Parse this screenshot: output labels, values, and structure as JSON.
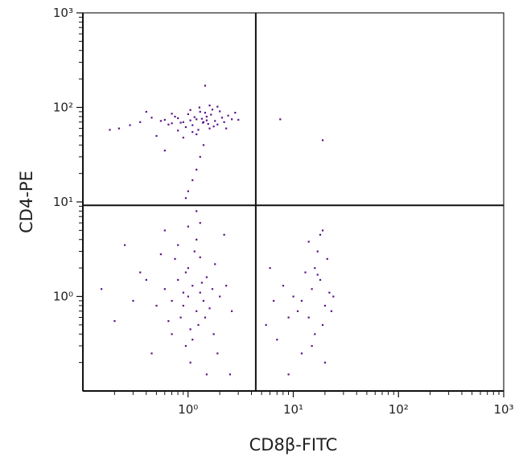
{
  "chart_data": {
    "type": "scatter",
    "x_label": "CD8β-FITC",
    "y_label": "CD4-PE",
    "log_x": true,
    "log_y": true,
    "color": "#5a1488",
    "xlim": [
      0.1,
      1000
    ],
    "ylim": [
      0.1,
      1000
    ],
    "xticks": [
      {
        "value": 1,
        "label": "10⁰"
      },
      {
        "value": 10,
        "label": "10¹"
      },
      {
        "value": 100,
        "label": "10²"
      },
      {
        "value": 1000,
        "label": "10³"
      }
    ],
    "yticks": [
      {
        "value": 1,
        "label": "10⁰"
      },
      {
        "value": 10,
        "label": "10¹"
      },
      {
        "value": 100,
        "label": "10²"
      },
      {
        "value": 1000,
        "label": "10³"
      }
    ],
    "xminorticks": [
      0.2,
      0.3,
      0.4,
      0.5,
      0.6,
      0.7,
      0.8,
      0.9,
      2,
      3,
      4,
      5,
      6,
      7,
      8,
      9,
      20,
      30,
      40,
      50,
      60,
      70,
      80,
      90,
      200,
      300,
      400,
      500,
      600,
      700,
      800,
      900
    ],
    "yminorticks": [
      0.2,
      0.3,
      0.4,
      0.5,
      0.6,
      0.7,
      0.8,
      0.9,
      2,
      3,
      4,
      5,
      6,
      7,
      8,
      9,
      20,
      30,
      40,
      50,
      60,
      70,
      80,
      90,
      200,
      300,
      400,
      500,
      600,
      700,
      800,
      900
    ],
    "quadrant": {
      "x": 4.4,
      "y": 9.2
    },
    "x": [
      1.2,
      1.5,
      0.9,
      1.1,
      1.8,
      2.1,
      0.7,
      1.3,
      1.6,
      1.0,
      0.8,
      1.4,
      2.4,
      1.7,
      0.6,
      1.25,
      1.9,
      1.05,
      1.45,
      0.95,
      2.2,
      0.75,
      1.35,
      1.55,
      1.15,
      0.55,
      2.6,
      1.65,
      0.85,
      1.75,
      1.28,
      0.65,
      2.0,
      1.1,
      1.5,
      0.45,
      1.38,
      2.8,
      0.35,
      0.28,
      0.22,
      0.18,
      3.0,
      1.2,
      0.9,
      1.6,
      1.45,
      1.4,
      1.3,
      1.2,
      1.1,
      1.0,
      1.2,
      0.95,
      1.3,
      0.6,
      0.5,
      2.3,
      7.5,
      19,
      0.4,
      1.9,
      0.7,
      1.05,
      0.8,
      1.0,
      1.1,
      0.9,
      1.2,
      0.8,
      1.3,
      0.7,
      1.5,
      1.0,
      0.85,
      1.25,
      0.95,
      1.4,
      0.6,
      1.7,
      1.05,
      0.75,
      1.15,
      0.9,
      1.35,
      2.0,
      0.5,
      1.6,
      1.8,
      0.65,
      1.1,
      0.95,
      2.3,
      0.4,
      1.2,
      0.8,
      1.0,
      0.3,
      2.6,
      0.55,
      1.45,
      0.7,
      1.3,
      0.45,
      1.75,
      0.2,
      0.25,
      2.2,
      0.35,
      1.9,
      1.05,
      0.6,
      2.5,
      0.15,
      1.5,
      15,
      18,
      12,
      20,
      16,
      14,
      22,
      17,
      10,
      19,
      13,
      21,
      16,
      11,
      18,
      15,
      8,
      9,
      6.5,
      24,
      20,
      7,
      5.5,
      14,
      19,
      12,
      9,
      17,
      23,
      6
    ],
    "y": [
      75,
      80,
      70,
      65,
      72,
      78,
      68,
      90,
      60,
      85,
      77,
      70,
      82,
      95,
      74,
      58,
      66,
      73,
      88,
      62,
      70,
      80,
      76,
      67,
      79,
      72,
      75,
      84,
      69,
      63,
      100,
      66,
      91,
      55,
      73,
      78,
      69,
      88,
      70,
      65,
      60,
      58,
      74,
      52,
      48,
      105,
      170,
      40,
      30,
      22,
      17,
      13,
      8,
      11,
      6,
      35,
      50,
      60,
      75,
      45,
      90,
      102,
      86,
      94,
      57,
      1.0,
      1.3,
      0.8,
      0.7,
      1.5,
      1.1,
      0.9,
      1.6,
      2.0,
      0.6,
      0.5,
      1.8,
      0.9,
      1.2,
      1.2,
      0.45,
      2.5,
      3.0,
      1.1,
      1.4,
      1.0,
      0.8,
      0.75,
      2.2,
      0.55,
      0.35,
      0.3,
      1.3,
      1.5,
      4.0,
      3.5,
      5.5,
      0.9,
      0.7,
      2.8,
      0.6,
      0.4,
      2.6,
      0.25,
      0.4,
      0.55,
      3.5,
      4.5,
      1.8,
      0.25,
      0.2,
      5.0,
      0.15,
      1.2,
      0.15,
      1.2,
      1.5,
      0.9,
      0.8,
      2.0,
      0.6,
      1.1,
      3.0,
      1.0,
      0.5,
      1.8,
      2.5,
      0.4,
      0.7,
      4.5,
      0.3,
      1.3,
      0.6,
      0.9,
      1.0,
      0.2,
      0.35,
      0.5,
      3.8,
      5.0,
      0.25,
      0.15,
      1.7,
      0.7,
      2.0
    ]
  }
}
